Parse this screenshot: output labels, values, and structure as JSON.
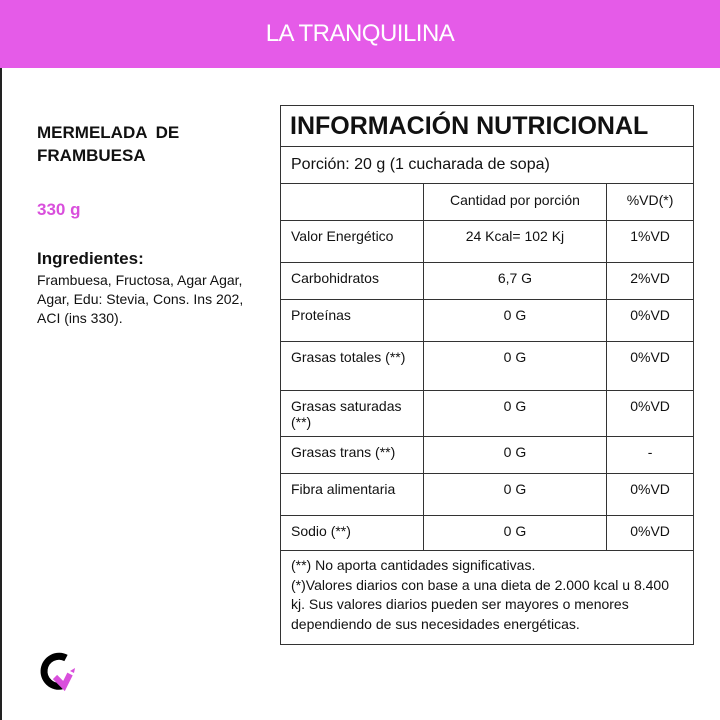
{
  "header": {
    "title": "LA TRANQUILINA"
  },
  "product": {
    "name": "MERMELADA DE FRAMBUESA",
    "weight": "330 g",
    "ingredients_title": "Ingredientes:",
    "ingredients": "Frambuesa, Fructosa, Agar Agar, Agar, Edu: Stevia, Cons. Ins 202, ACI (ins 330)."
  },
  "table": {
    "title": "INFORMACIÓN NUTRICIONAL",
    "portion": "Porción: 20 g (1 cucharada de sopa)",
    "headers": [
      "",
      "Cantidad por porción",
      "%VD(*)"
    ],
    "rows": [
      [
        "Valor Energético",
        "24 Kcal= 102 Kj",
        "1%VD"
      ],
      [
        "Carbohidratos",
        "6,7 G",
        "2%VD"
      ],
      [
        "Proteínas",
        "0 G",
        "0%VD"
      ],
      [
        "Grasas totales (**)",
        "0 G",
        "0%VD"
      ],
      [
        "Grasas saturadas (**)",
        "0 G",
        "0%VD"
      ],
      [
        "Grasas trans (**)",
        "0 G",
        "-"
      ],
      [
        "Fibra alimentaria",
        "0 G",
        "0%VD"
      ],
      [
        "Sodio (**)",
        "0 G",
        "0%VD"
      ]
    ],
    "footnote1": "(**) No aporta cantidades significativas.",
    "footnote2": "(*)Valores diarios con base a una dieta de 2.000 kcal u 8.400 kj. Sus valores diarios pueden ser mayores o menores dependiendo de sus necesidades energéticas."
  },
  "colors": {
    "brand": "#e55be8",
    "accent_text": "#d94fdc"
  },
  "logo": {
    "icon": "brand-logo-icon"
  }
}
